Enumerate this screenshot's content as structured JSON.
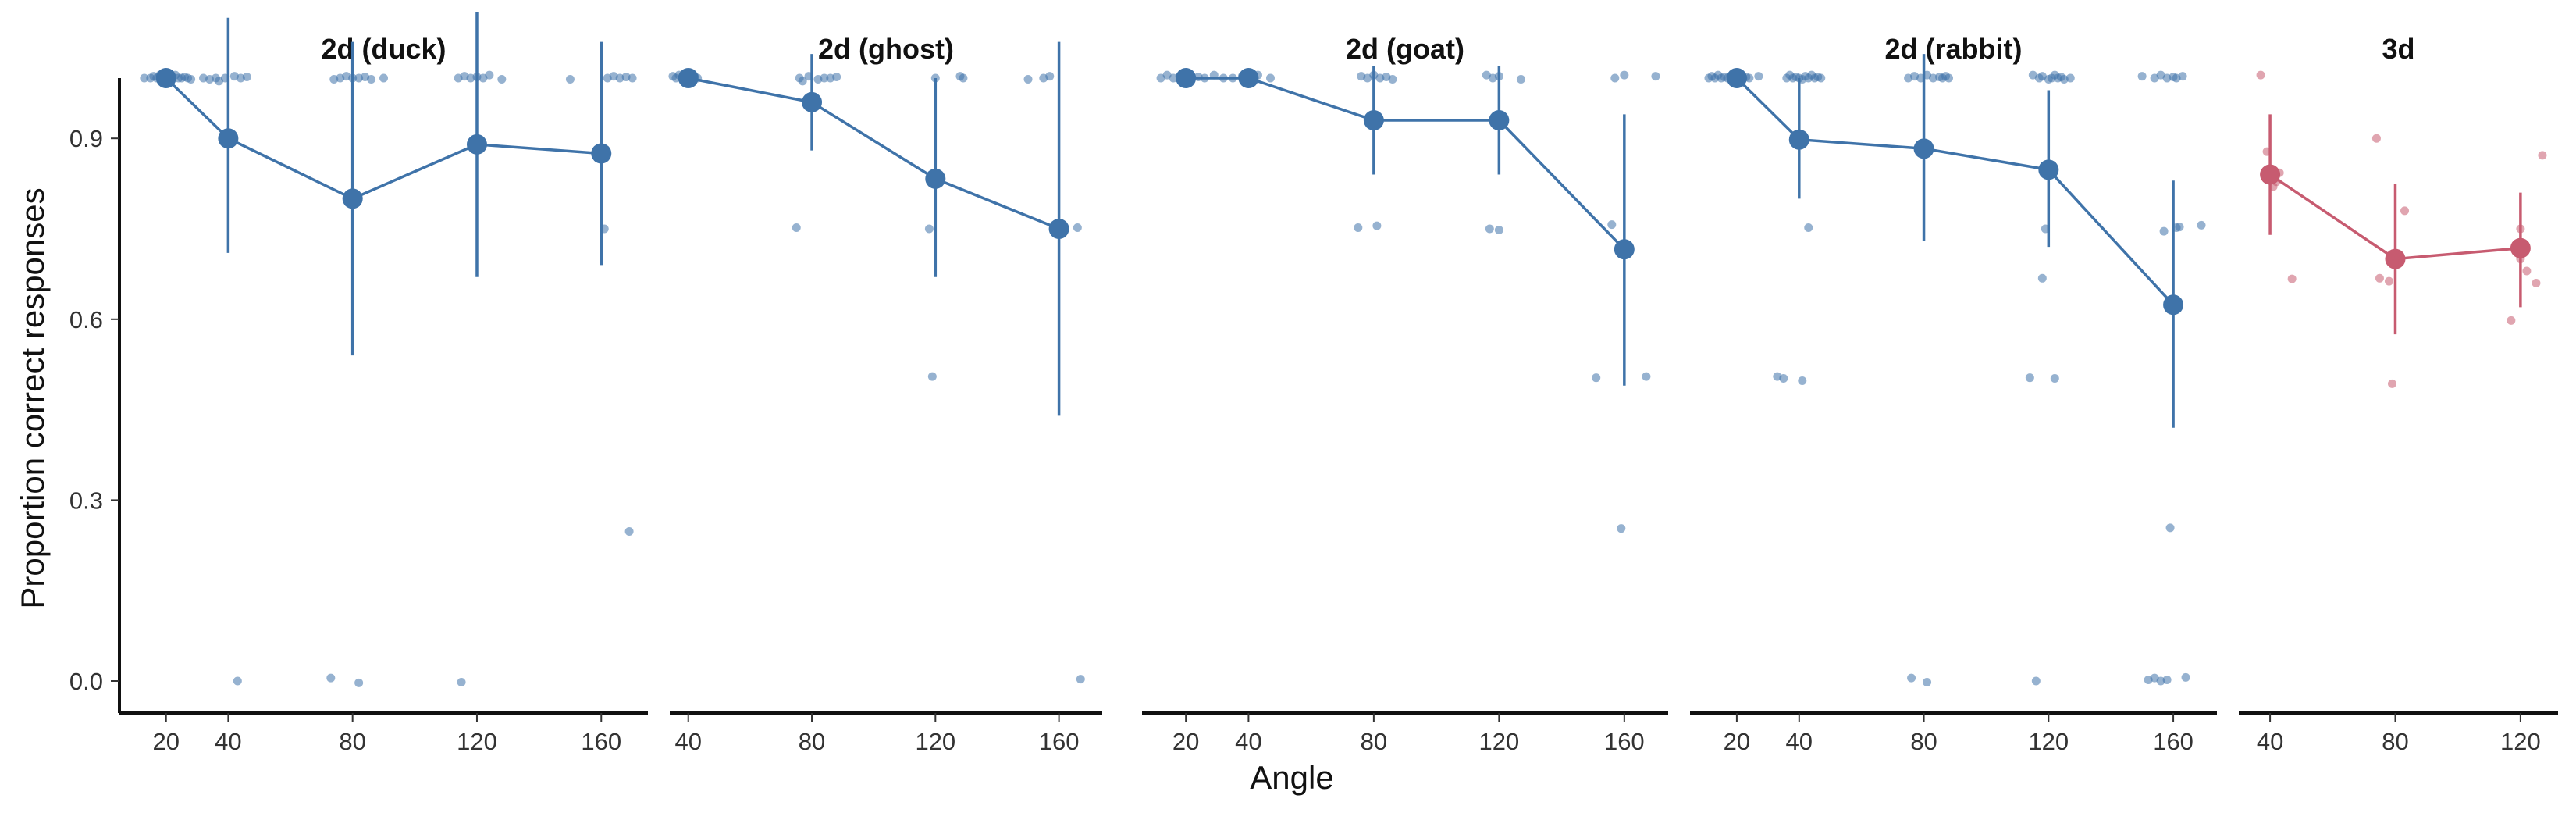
{
  "chart_data": {
    "type": "scatter",
    "xlabel": "Angle",
    "ylabel": "Proportion correct responses",
    "ylim": [
      0,
      1
    ],
    "y_ticks": [
      0.0,
      0.3,
      0.6,
      0.9
    ],
    "y_tick_labels": [
      "0.0",
      "0.3",
      "0.6",
      "0.9"
    ],
    "colors": {
      "2d": "#3f73a9",
      "3d": "#c75b70"
    },
    "panels": [
      {
        "title": "2d (duck)",
        "color": "#3f73a9",
        "x_ticks": [
          20,
          40,
          80,
          120,
          160
        ],
        "xlim": [
          5,
          175
        ],
        "means": [
          {
            "x": 20,
            "y": 1.0,
            "lo": 1.0,
            "hi": 1.0
          },
          {
            "x": 40,
            "y": 0.9,
            "lo": 0.71,
            "hi": 1.1
          },
          {
            "x": 80,
            "y": 0.8,
            "lo": 0.54,
            "hi": 1.06
          },
          {
            "x": 120,
            "y": 0.89,
            "lo": 0.67,
            "hi": 1.11
          },
          {
            "x": 160,
            "y": 0.875,
            "lo": 0.69,
            "hi": 1.06
          }
        ],
        "points": [
          [
            13,
            1.0
          ],
          [
            15,
            1.0
          ],
          [
            16,
            1.003
          ],
          [
            17,
            1.0
          ],
          [
            18,
            1.005
          ],
          [
            19,
            1.0
          ],
          [
            21,
            1.003
          ],
          [
            22,
            1.0
          ],
          [
            23,
            1.005
          ],
          [
            24,
            1.0
          ],
          [
            25,
            1.0
          ],
          [
            26,
            1.002
          ],
          [
            27,
            1.0
          ],
          [
            28,
            0.998
          ],
          [
            32,
            1.0
          ],
          [
            34,
            0.998
          ],
          [
            36,
            1.0
          ],
          [
            37,
            0.995
          ],
          [
            39,
            1.0
          ],
          [
            42,
            1.003
          ],
          [
            44,
            1.0
          ],
          [
            46,
            1.002
          ],
          [
            43,
            0.0
          ],
          [
            74,
            0.998
          ],
          [
            76,
            1.0
          ],
          [
            78,
            1.003
          ],
          [
            80,
            1.0
          ],
          [
            82,
            1.0
          ],
          [
            84,
            1.002
          ],
          [
            86,
            0.998
          ],
          [
            90,
            1.0
          ],
          [
            73,
            0.005
          ],
          [
            82,
            -0.003
          ],
          [
            114,
            1.0
          ],
          [
            116,
            1.003
          ],
          [
            118,
            1.0
          ],
          [
            120,
            1.002
          ],
          [
            122,
            1.0
          ],
          [
            124,
            1.005
          ],
          [
            128,
            0.998
          ],
          [
            115,
            -0.002
          ],
          [
            150,
            0.998
          ],
          [
            162,
            1.0
          ],
          [
            164,
            1.003
          ],
          [
            166,
            1.0
          ],
          [
            168,
            1.002
          ],
          [
            170,
            1.0
          ],
          [
            161,
            0.75
          ],
          [
            169,
            0.248
          ]
        ]
      },
      {
        "title": "2d (ghost)",
        "color": "#3f73a9",
        "x_ticks": [
          40,
          80,
          120,
          160
        ],
        "xlim": [
          34,
          174
        ],
        "means": [
          {
            "x": 40,
            "y": 1.0,
            "lo": 1.0,
            "hi": 1.0
          },
          {
            "x": 80,
            "y": 0.96,
            "lo": 0.88,
            "hi": 1.04
          },
          {
            "x": 120,
            "y": 0.833,
            "lo": 0.67,
            "hi": 1.0
          },
          {
            "x": 160,
            "y": 0.75,
            "lo": 0.44,
            "hi": 1.06
          }
        ],
        "points": [
          [
            35,
            1.003
          ],
          [
            36,
            1.0
          ],
          [
            37,
            1.005
          ],
          [
            38,
            1.0
          ],
          [
            39,
            1.002
          ],
          [
            41,
            1.0
          ],
          [
            42,
            1.003
          ],
          [
            43,
            1.0
          ],
          [
            76,
            1.0
          ],
          [
            77,
            0.995
          ],
          [
            79,
            1.003
          ],
          [
            82,
            0.998
          ],
          [
            84,
            1.0
          ],
          [
            86,
            1.0
          ],
          [
            88,
            1.002
          ],
          [
            75,
            0.752
          ],
          [
            118,
            0.75
          ],
          [
            120,
            1.0
          ],
          [
            128,
            1.003
          ],
          [
            129,
            1.0
          ],
          [
            119,
            0.505
          ],
          [
            150,
            0.998
          ],
          [
            155,
            1.0
          ],
          [
            157,
            1.003
          ],
          [
            166,
            0.752
          ],
          [
            167,
            0.003
          ]
        ]
      },
      {
        "title": "2d (goat)",
        "color": "#3f73a9",
        "x_ticks": [
          20,
          40,
          80,
          120,
          160
        ],
        "xlim": [
          6,
          174
        ],
        "means": [
          {
            "x": 20,
            "y": 1.0,
            "lo": 1.0,
            "hi": 1.0
          },
          {
            "x": 40,
            "y": 1.0,
            "lo": 1.0,
            "hi": 1.0
          },
          {
            "x": 80,
            "y": 0.93,
            "lo": 0.84,
            "hi": 1.02
          },
          {
            "x": 120,
            "y": 0.93,
            "lo": 0.84,
            "hi": 1.02
          },
          {
            "x": 160,
            "y": 0.716,
            "lo": 0.49,
            "hi": 0.94
          }
        ],
        "points": [
          [
            12,
            1.0
          ],
          [
            14,
            1.005
          ],
          [
            16,
            1.0
          ],
          [
            18,
            1.003
          ],
          [
            22,
            1.0
          ],
          [
            24,
            1.002
          ],
          [
            26,
            1.0
          ],
          [
            29,
            1.005
          ],
          [
            32,
            1.0
          ],
          [
            35,
            1.0
          ],
          [
            38,
            1.003
          ],
          [
            41,
            1.0
          ],
          [
            43,
            1.005
          ],
          [
            47,
            1.0
          ],
          [
            76,
            1.003
          ],
          [
            78,
            1.0
          ],
          [
            80,
            1.005
          ],
          [
            82,
            1.0
          ],
          [
            84,
            1.002
          ],
          [
            86,
            0.998
          ],
          [
            75,
            0.752
          ],
          [
            81,
            0.755
          ],
          [
            116,
            1.005
          ],
          [
            118,
            1.0
          ],
          [
            120,
            1.003
          ],
          [
            127,
            0.998
          ],
          [
            117,
            0.75
          ],
          [
            120,
            0.748
          ],
          [
            151,
            0.503
          ],
          [
            156,
            0.757
          ],
          [
            157,
            1.0
          ],
          [
            160,
            1.005
          ],
          [
            167,
            0.505
          ],
          [
            170,
            1.003
          ],
          [
            159,
            0.253
          ]
        ]
      },
      {
        "title": "2d (rabbit)",
        "color": "#3f73a9",
        "x_ticks": [
          20,
          40,
          80,
          120,
          160
        ],
        "xlim": [
          5,
          174
        ],
        "means": [
          {
            "x": 20,
            "y": 1.0,
            "lo": 1.0,
            "hi": 1.0
          },
          {
            "x": 40,
            "y": 0.898,
            "lo": 0.8,
            "hi": 1.0
          },
          {
            "x": 80,
            "y": 0.883,
            "lo": 0.73,
            "hi": 1.04
          },
          {
            "x": 120,
            "y": 0.848,
            "lo": 0.72,
            "hi": 0.98
          },
          {
            "x": 160,
            "y": 0.624,
            "lo": 0.42,
            "hi": 0.83
          }
        ],
        "points": [
          [
            11,
            1.0
          ],
          [
            12,
            1.003
          ],
          [
            13,
            1.0
          ],
          [
            14,
            1.005
          ],
          [
            15,
            1.0
          ],
          [
            16,
            1.002
          ],
          [
            17,
            1.0
          ],
          [
            18,
            1.003
          ],
          [
            19,
            1.0
          ],
          [
            21,
            1.005
          ],
          [
            22,
            1.0
          ],
          [
            23,
            1.002
          ],
          [
            24,
            1.0
          ],
          [
            27,
            1.003
          ],
          [
            36,
            1.0
          ],
          [
            37,
            1.005
          ],
          [
            38,
            1.0
          ],
          [
            39,
            1.002
          ],
          [
            40,
            1.0
          ],
          [
            41,
            0.998
          ],
          [
            42,
            1.003
          ],
          [
            43,
            1.0
          ],
          [
            44,
            1.005
          ],
          [
            45,
            1.0
          ],
          [
            46,
            1.002
          ],
          [
            47,
            1.0
          ],
          [
            43,
            0.752
          ],
          [
            33,
            0.505
          ],
          [
            35,
            0.502
          ],
          [
            41,
            0.498
          ],
          [
            75,
            1.0
          ],
          [
            77,
            1.003
          ],
          [
            79,
            1.0
          ],
          [
            81,
            1.005
          ],
          [
            83,
            1.0
          ],
          [
            85,
            1.002
          ],
          [
            86,
            1.0
          ],
          [
            87,
            1.003
          ],
          [
            88,
            1.0
          ],
          [
            76,
            0.005
          ],
          [
            81,
            -0.002
          ],
          [
            115,
            1.005
          ],
          [
            117,
            1.0
          ],
          [
            118,
            1.003
          ],
          [
            120,
            0.998
          ],
          [
            121,
            1.0
          ],
          [
            122,
            1.005
          ],
          [
            123,
            1.0
          ],
          [
            124,
            1.002
          ],
          [
            125,
            0.998
          ],
          [
            127,
            1.0
          ],
          [
            119,
            0.75
          ],
          [
            118,
            0.668
          ],
          [
            122,
            0.502
          ],
          [
            114,
            0.503
          ],
          [
            116,
            0.0
          ],
          [
            150,
            1.003
          ],
          [
            154,
            1.0
          ],
          [
            156,
            1.005
          ],
          [
            158,
            1.0
          ],
          [
            160,
            1.002
          ],
          [
            161,
            1.0
          ],
          [
            163,
            1.003
          ],
          [
            152,
            0.002
          ],
          [
            154,
            0.005
          ],
          [
            156,
            0.0
          ],
          [
            158,
            0.002
          ],
          [
            164,
            0.006
          ],
          [
            157,
            0.746
          ],
          [
            161,
            0.752
          ],
          [
            162,
            0.753
          ],
          [
            169,
            0.756
          ],
          [
            159,
            0.254
          ]
        ]
      },
      {
        "title": "3d",
        "color": "#c75b70",
        "x_ticks": [
          40,
          80,
          120
        ],
        "xlim": [
          30,
          132
        ],
        "means": [
          {
            "x": 40,
            "y": 0.84,
            "lo": 0.74,
            "hi": 0.94
          },
          {
            "x": 80,
            "y": 0.7,
            "lo": 0.575,
            "hi": 0.825
          },
          {
            "x": 120,
            "y": 0.718,
            "lo": 0.62,
            "hi": 0.81
          }
        ],
        "points": [
          [
            37,
            1.005
          ],
          [
            39,
            0.878
          ],
          [
            41,
            0.82
          ],
          [
            43,
            0.843
          ],
          [
            42,
            0.828
          ],
          [
            47,
            0.667
          ],
          [
            74,
            0.9
          ],
          [
            75,
            0.668
          ],
          [
            78,
            0.663
          ],
          [
            79,
            0.493
          ],
          [
            81,
            0.708
          ],
          [
            83,
            0.78
          ],
          [
            117,
            0.598
          ],
          [
            120,
            0.75
          ],
          [
            120,
            0.7
          ],
          [
            122,
            0.68
          ],
          [
            125,
            0.66
          ],
          [
            127,
            0.872
          ]
        ]
      }
    ]
  }
}
